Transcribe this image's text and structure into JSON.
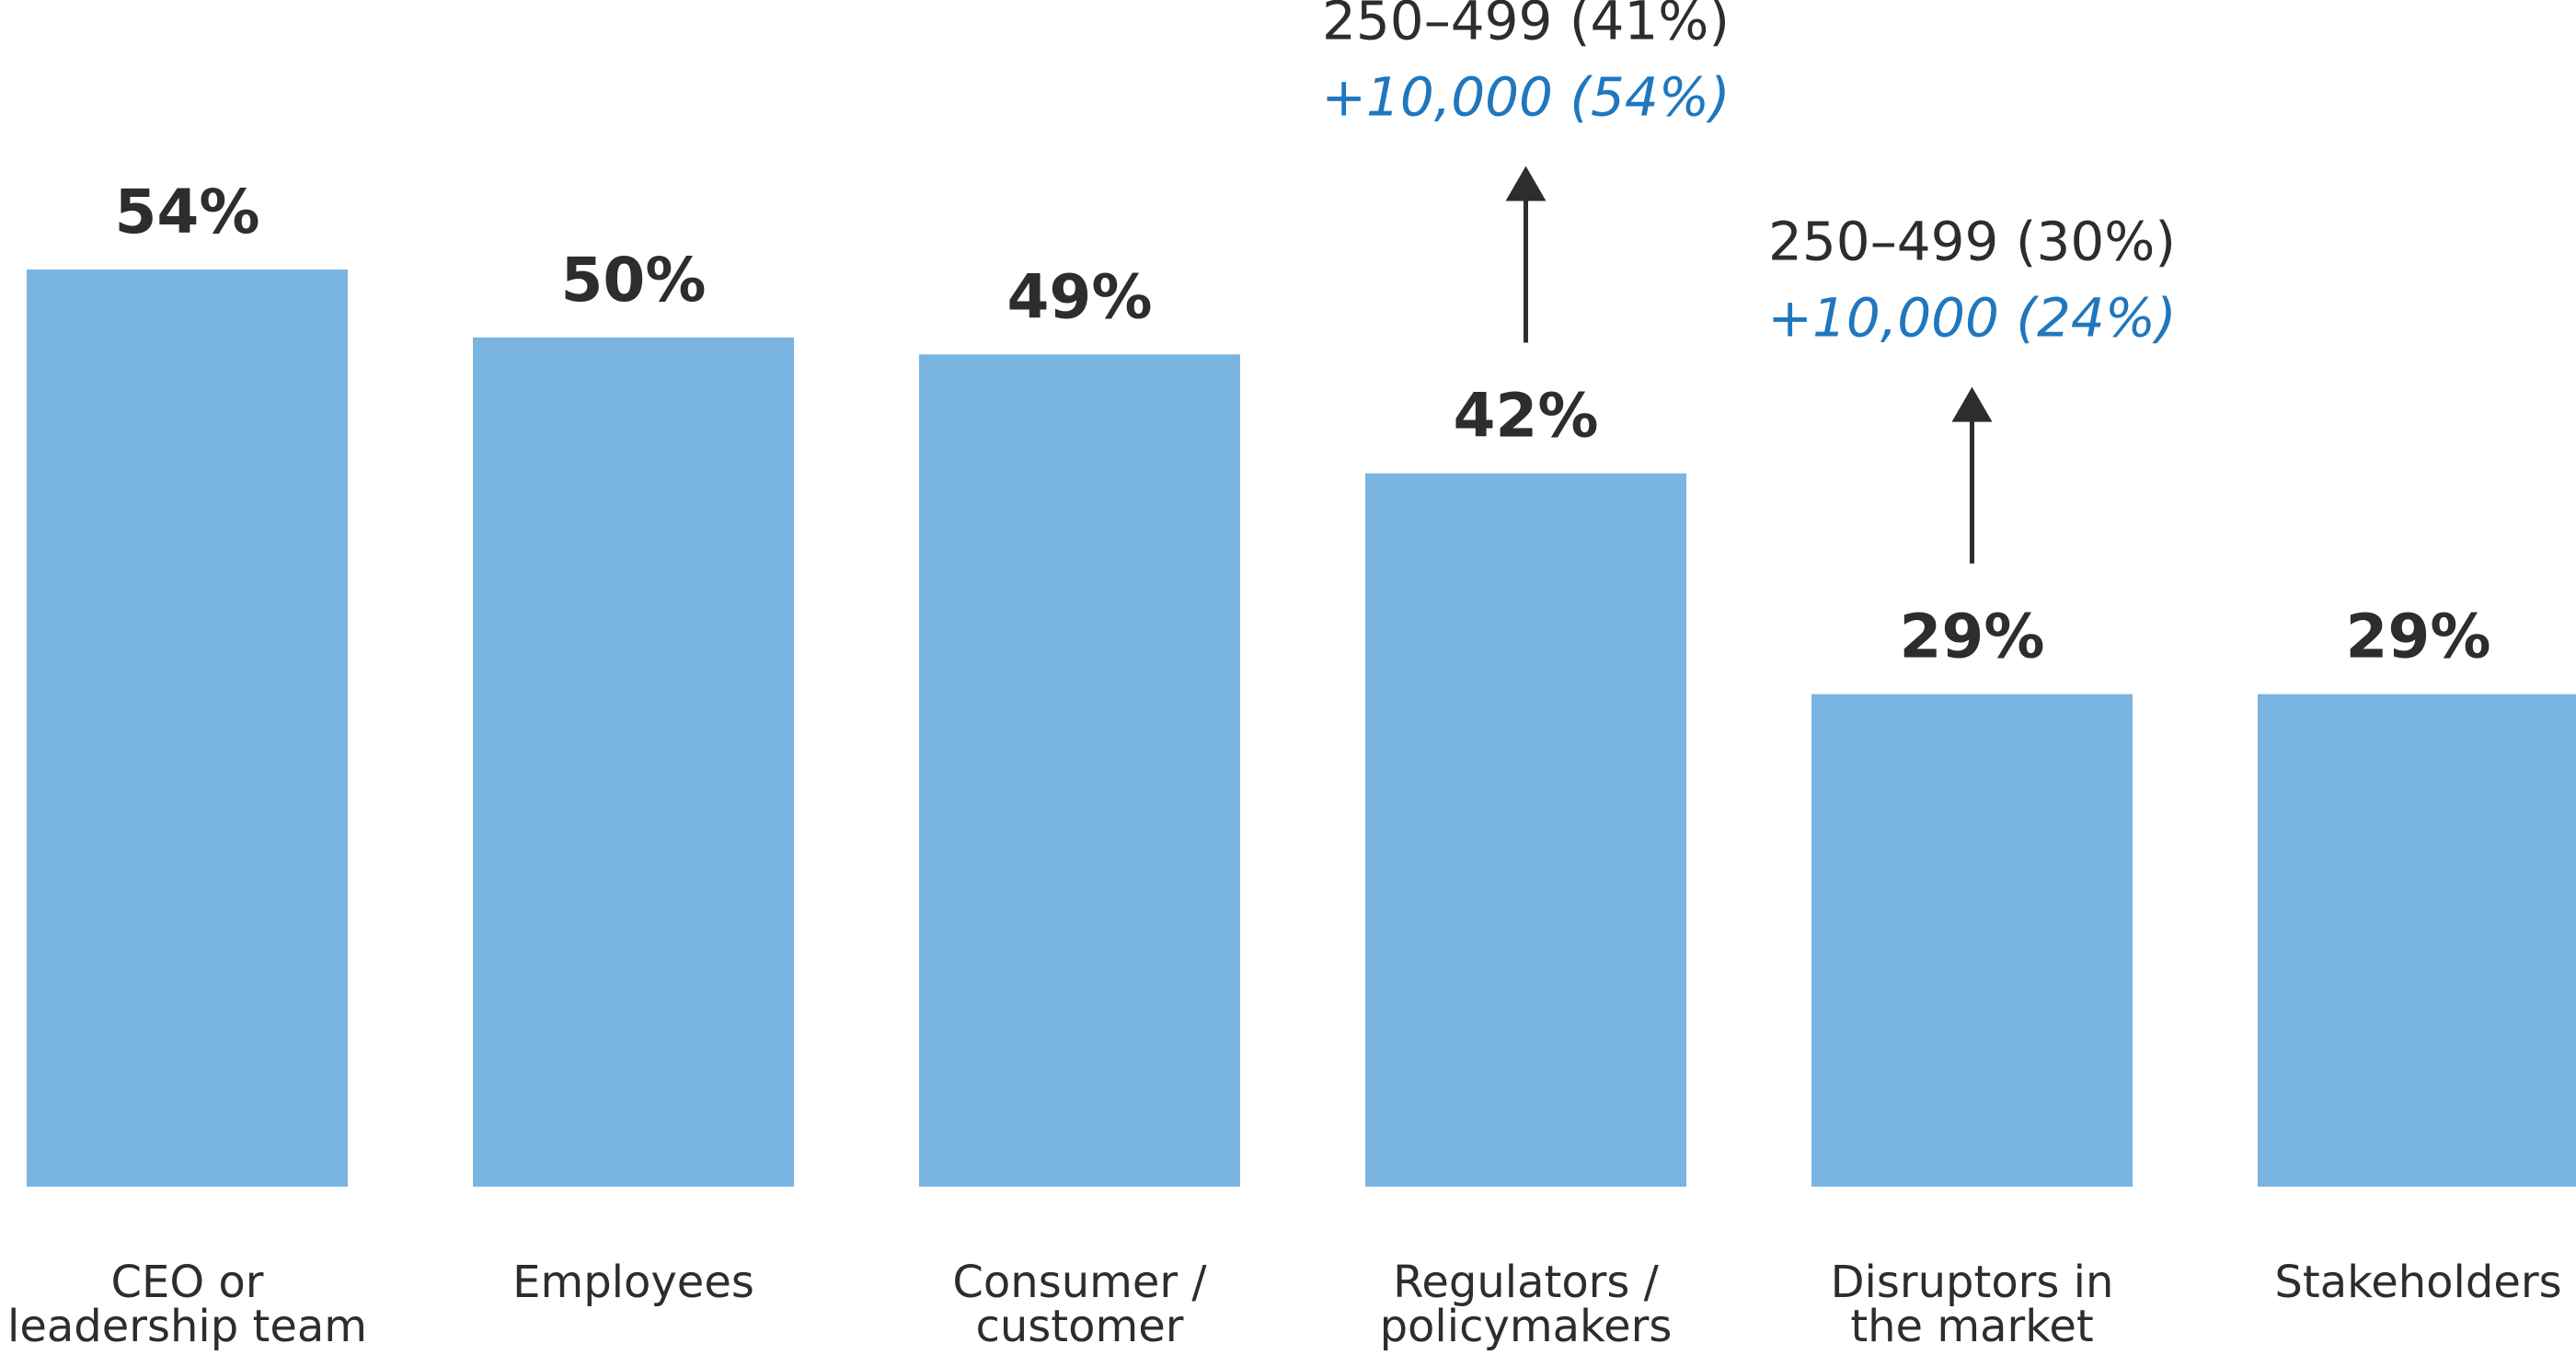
{
  "chart_data": {
    "type": "bar",
    "categories": [
      [
        "CEO or",
        "leadership team"
      ],
      [
        "Employees"
      ],
      [
        "Consumer /",
        "customer"
      ],
      [
        "Regulators /",
        "policymakers"
      ],
      [
        "Disruptors in",
        "the market"
      ],
      [
        "Stakeholders"
      ]
    ],
    "values": [
      54,
      50,
      49,
      42,
      29,
      29
    ],
    "value_labels": [
      "54%",
      "50%",
      "49%",
      "42%",
      "29%",
      "29%"
    ],
    "ylim": [
      0,
      54
    ],
    "grid": false,
    "annotations": [
      {
        "category_index": 3,
        "lines": [
          "250–499 (41%)",
          "+10,000 (54%)"
        ]
      },
      {
        "category_index": 4,
        "lines": [
          "250–499 (30%)",
          "+10,000 (24%)"
        ]
      }
    ]
  },
  "colors": {
    "bar": "#7ab4e1",
    "text": "#2b2d2f",
    "highlight": "#1f77be",
    "arrow": "#2b2d2f"
  },
  "icons": [
    "arrow-up-icon"
  ]
}
